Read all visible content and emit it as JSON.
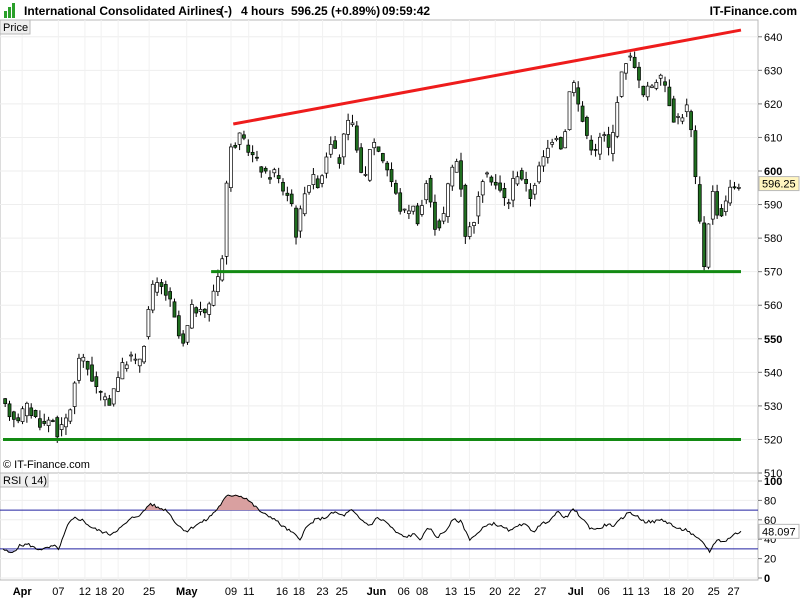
{
  "header": {
    "instrument": "International Consolidated Airlines",
    "change_mode": "(-)",
    "timeframe": "4 hours",
    "last_quote": "596.25 (+0.89%)",
    "time": "09:59:42",
    "brand": "IT-Finance.com"
  },
  "price_panel": {
    "label": "Price",
    "watermark": "© IT-Finance.com",
    "last_value": "596.25"
  },
  "rsi_panel": {
    "label": "RSI ( 14)",
    "last_value": "48.097"
  },
  "colors": {
    "resistance_line": "#ee1c1c",
    "support_lines": "#138a13",
    "candle_up": "#ffffff",
    "candle_down": "#1f6e1f",
    "rsi_line": "#000000",
    "rsi_overbought_fill": "#d9a0a0",
    "rsi_oversold_fill": "#a9a9e0",
    "last_value_tag": "#fff5bf",
    "logo": "#2aa02a"
  },
  "chart_data": [
    {
      "type": "candlestick",
      "ylim": [
        510,
        645
      ],
      "y_ticks": [
        510,
        520,
        530,
        540,
        550,
        560,
        570,
        580,
        590,
        600,
        610,
        620,
        630,
        640
      ],
      "y_ticks_bold": [
        550,
        600
      ],
      "x_ticks": [
        {
          "label": "Apr",
          "bold": true,
          "pos": 0.026
        },
        {
          "label": "07",
          "bold": false,
          "pos": 0.075
        },
        {
          "label": "12",
          "bold": false,
          "pos": 0.111
        },
        {
          "label": "18",
          "bold": false,
          "pos": 0.133
        },
        {
          "label": "20",
          "bold": false,
          "pos": 0.156
        },
        {
          "label": "25",
          "bold": false,
          "pos": 0.198
        },
        {
          "label": "May",
          "bold": true,
          "pos": 0.249
        },
        {
          "label": "09",
          "bold": false,
          "pos": 0.309
        },
        {
          "label": "11",
          "bold": false,
          "pos": 0.333
        },
        {
          "label": "16",
          "bold": false,
          "pos": 0.378
        },
        {
          "label": "18",
          "bold": false,
          "pos": 0.401
        },
        {
          "label": "23",
          "bold": false,
          "pos": 0.433
        },
        {
          "label": "25",
          "bold": false,
          "pos": 0.459
        },
        {
          "label": "Jun",
          "bold": true,
          "pos": 0.506
        },
        {
          "label": "06",
          "bold": false,
          "pos": 0.543
        },
        {
          "label": "08",
          "bold": false,
          "pos": 0.568
        },
        {
          "label": "13",
          "bold": false,
          "pos": 0.607
        },
        {
          "label": "15",
          "bold": false,
          "pos": 0.632
        },
        {
          "label": "20",
          "bold": false,
          "pos": 0.667
        },
        {
          "label": "22",
          "bold": false,
          "pos": 0.693
        },
        {
          "label": "27",
          "bold": false,
          "pos": 0.728
        },
        {
          "label": "Jul",
          "bold": true,
          "pos": 0.776
        },
        {
          "label": "06",
          "bold": false,
          "pos": 0.814
        },
        {
          "label": "11",
          "bold": false,
          "pos": 0.847
        },
        {
          "label": "13",
          "bold": false,
          "pos": 0.868
        },
        {
          "label": "18",
          "bold": false,
          "pos": 0.903
        },
        {
          "label": "20",
          "bold": false,
          "pos": 0.928
        },
        {
          "label": "25",
          "bold": false,
          "pos": 0.963
        },
        {
          "label": "27",
          "bold": false,
          "pos": 0.99
        }
      ],
      "anchors": [
        [
          0.0,
          531
        ],
        [
          0.011,
          528
        ],
        [
          0.022,
          526
        ],
        [
          0.034,
          530
        ],
        [
          0.045,
          527
        ],
        [
          0.057,
          524
        ],
        [
          0.069,
          527
        ],
        [
          0.078,
          521
        ],
        [
          0.088,
          526
        ],
        [
          0.097,
          531
        ],
        [
          0.105,
          545
        ],
        [
          0.116,
          542
        ],
        [
          0.13,
          535
        ],
        [
          0.145,
          530
        ],
        [
          0.16,
          540
        ],
        [
          0.175,
          545
        ],
        [
          0.185,
          542
        ],
        [
          0.194,
          549
        ],
        [
          0.204,
          565
        ],
        [
          0.215,
          566
        ],
        [
          0.228,
          562
        ],
        [
          0.236,
          555
        ],
        [
          0.246,
          547
        ],
        [
          0.26,
          560
        ],
        [
          0.272,
          557
        ],
        [
          0.283,
          560
        ],
        [
          0.292,
          568
        ],
        [
          0.299,
          571
        ],
        [
          0.305,
          595
        ],
        [
          0.312,
          607
        ],
        [
          0.324,
          610
        ],
        [
          0.337,
          606
        ],
        [
          0.349,
          602
        ],
        [
          0.361,
          598
        ],
        [
          0.371,
          600
        ],
        [
          0.381,
          595
        ],
        [
          0.393,
          592
        ],
        [
          0.401,
          580
        ],
        [
          0.41,
          594
        ],
        [
          0.422,
          598
        ],
        [
          0.432,
          596
        ],
        [
          0.446,
          610
        ],
        [
          0.458,
          602
        ],
        [
          0.468,
          614
        ],
        [
          0.479,
          613
        ],
        [
          0.491,
          594
        ],
        [
          0.502,
          610
        ],
        [
          0.513,
          606
        ],
        [
          0.525,
          600
        ],
        [
          0.535,
          593
        ],
        [
          0.544,
          587
        ],
        [
          0.557,
          590
        ],
        [
          0.566,
          585
        ],
        [
          0.577,
          597
        ],
        [
          0.587,
          584
        ],
        [
          0.598,
          584
        ],
        [
          0.609,
          600
        ],
        [
          0.62,
          604
        ],
        [
          0.63,
          580
        ],
        [
          0.643,
          587
        ],
        [
          0.653,
          598
        ],
        [
          0.665,
          598
        ],
        [
          0.676,
          594
        ],
        [
          0.687,
          590
        ],
        [
          0.697,
          600
        ],
        [
          0.707,
          598
        ],
        [
          0.717,
          592
        ],
        [
          0.728,
          600
        ],
        [
          0.74,
          606
        ],
        [
          0.751,
          612
        ],
        [
          0.762,
          606
        ],
        [
          0.773,
          630
        ],
        [
          0.784,
          618
        ],
        [
          0.795,
          610
        ],
        [
          0.805,
          605
        ],
        [
          0.815,
          612
        ],
        [
          0.826,
          605
        ],
        [
          0.837,
          625
        ],
        [
          0.848,
          634
        ],
        [
          0.858,
          633
        ],
        [
          0.869,
          622
        ],
        [
          0.879,
          625
        ],
        [
          0.89,
          628
        ],
        [
          0.9,
          626
        ],
        [
          0.911,
          616
        ],
        [
          0.921,
          616
        ],
        [
          0.932,
          620
        ],
        [
          0.942,
          595
        ],
        [
          0.953,
          572
        ],
        [
          0.963,
          595
        ],
        [
          0.974,
          585
        ],
        [
          0.985,
          594
        ],
        [
          1.0,
          596.25
        ]
      ],
      "n_candles": 170,
      "trend_lines": [
        {
          "name": "resistance",
          "color": "resistance",
          "x": [
            0.312,
            1.0
          ],
          "y": [
            614,
            642
          ]
        },
        {
          "name": "support-upper",
          "color": "support",
          "x": [
            0.282,
            1.0
          ],
          "y": [
            570,
            570
          ]
        },
        {
          "name": "support-lower",
          "color": "support",
          "x": [
            0.0,
            1.0
          ],
          "y": [
            520,
            520
          ]
        }
      ]
    },
    {
      "type": "line",
      "name": "RSI ( 14)",
      "ylim": [
        0,
        100
      ],
      "y_ticks": [
        0,
        20,
        40,
        60,
        80,
        100
      ],
      "y_ticks_bold": [
        0,
        100
      ],
      "levels": [
        30,
        70
      ],
      "anchors": [
        [
          0.0,
          30
        ],
        [
          0.011,
          25
        ],
        [
          0.022,
          33
        ],
        [
          0.034,
          35
        ],
        [
          0.045,
          30
        ],
        [
          0.057,
          30
        ],
        [
          0.069,
          33
        ],
        [
          0.076,
          30
        ],
        [
          0.088,
          55
        ],
        [
          0.097,
          62
        ],
        [
          0.107,
          60
        ],
        [
          0.12,
          52
        ],
        [
          0.133,
          48
        ],
        [
          0.145,
          45
        ],
        [
          0.16,
          52
        ],
        [
          0.175,
          62
        ],
        [
          0.188,
          66
        ],
        [
          0.199,
          77
        ],
        [
          0.211,
          72
        ],
        [
          0.222,
          70
        ],
        [
          0.236,
          55
        ],
        [
          0.249,
          48
        ],
        [
          0.262,
          55
        ],
        [
          0.276,
          60
        ],
        [
          0.289,
          70
        ],
        [
          0.303,
          84
        ],
        [
          0.316,
          86
        ],
        [
          0.33,
          82
        ],
        [
          0.341,
          74
        ],
        [
          0.353,
          66
        ],
        [
          0.366,
          62
        ],
        [
          0.376,
          55
        ],
        [
          0.393,
          46
        ],
        [
          0.402,
          40
        ],
        [
          0.411,
          52
        ],
        [
          0.423,
          60
        ],
        [
          0.436,
          62
        ],
        [
          0.449,
          68
        ],
        [
          0.461,
          64
        ],
        [
          0.472,
          70
        ],
        [
          0.485,
          60
        ],
        [
          0.497,
          54
        ],
        [
          0.507,
          62
        ],
        [
          0.519,
          58
        ],
        [
          0.531,
          48
        ],
        [
          0.544,
          42
        ],
        [
          0.557,
          45
        ],
        [
          0.566,
          40
        ],
        [
          0.577,
          52
        ],
        [
          0.588,
          42
        ],
        [
          0.599,
          48
        ],
        [
          0.61,
          60
        ],
        [
          0.621,
          58
        ],
        [
          0.632,
          40
        ],
        [
          0.644,
          46
        ],
        [
          0.655,
          55
        ],
        [
          0.666,
          56
        ],
        [
          0.677,
          52
        ],
        [
          0.689,
          48
        ],
        [
          0.699,
          56
        ],
        [
          0.709,
          54
        ],
        [
          0.719,
          48
        ],
        [
          0.729,
          55
        ],
        [
          0.741,
          60
        ],
        [
          0.752,
          68
        ],
        [
          0.763,
          62
        ],
        [
          0.773,
          71
        ],
        [
          0.784,
          62
        ],
        [
          0.795,
          52
        ],
        [
          0.806,
          50
        ],
        [
          0.817,
          55
        ],
        [
          0.829,
          54
        ],
        [
          0.839,
          62
        ],
        [
          0.849,
          68
        ],
        [
          0.858,
          64
        ],
        [
          0.87,
          58
        ],
        [
          0.882,
          58
        ],
        [
          0.893,
          60
        ],
        [
          0.904,
          56
        ],
        [
          0.915,
          50
        ],
        [
          0.926,
          50
        ],
        [
          0.938,
          42
        ],
        [
          0.949,
          36
        ],
        [
          0.958,
          27
        ],
        [
          0.967,
          40
        ],
        [
          0.978,
          37
        ],
        [
          0.988,
          44
        ],
        [
          1.0,
          48.097
        ]
      ]
    }
  ]
}
